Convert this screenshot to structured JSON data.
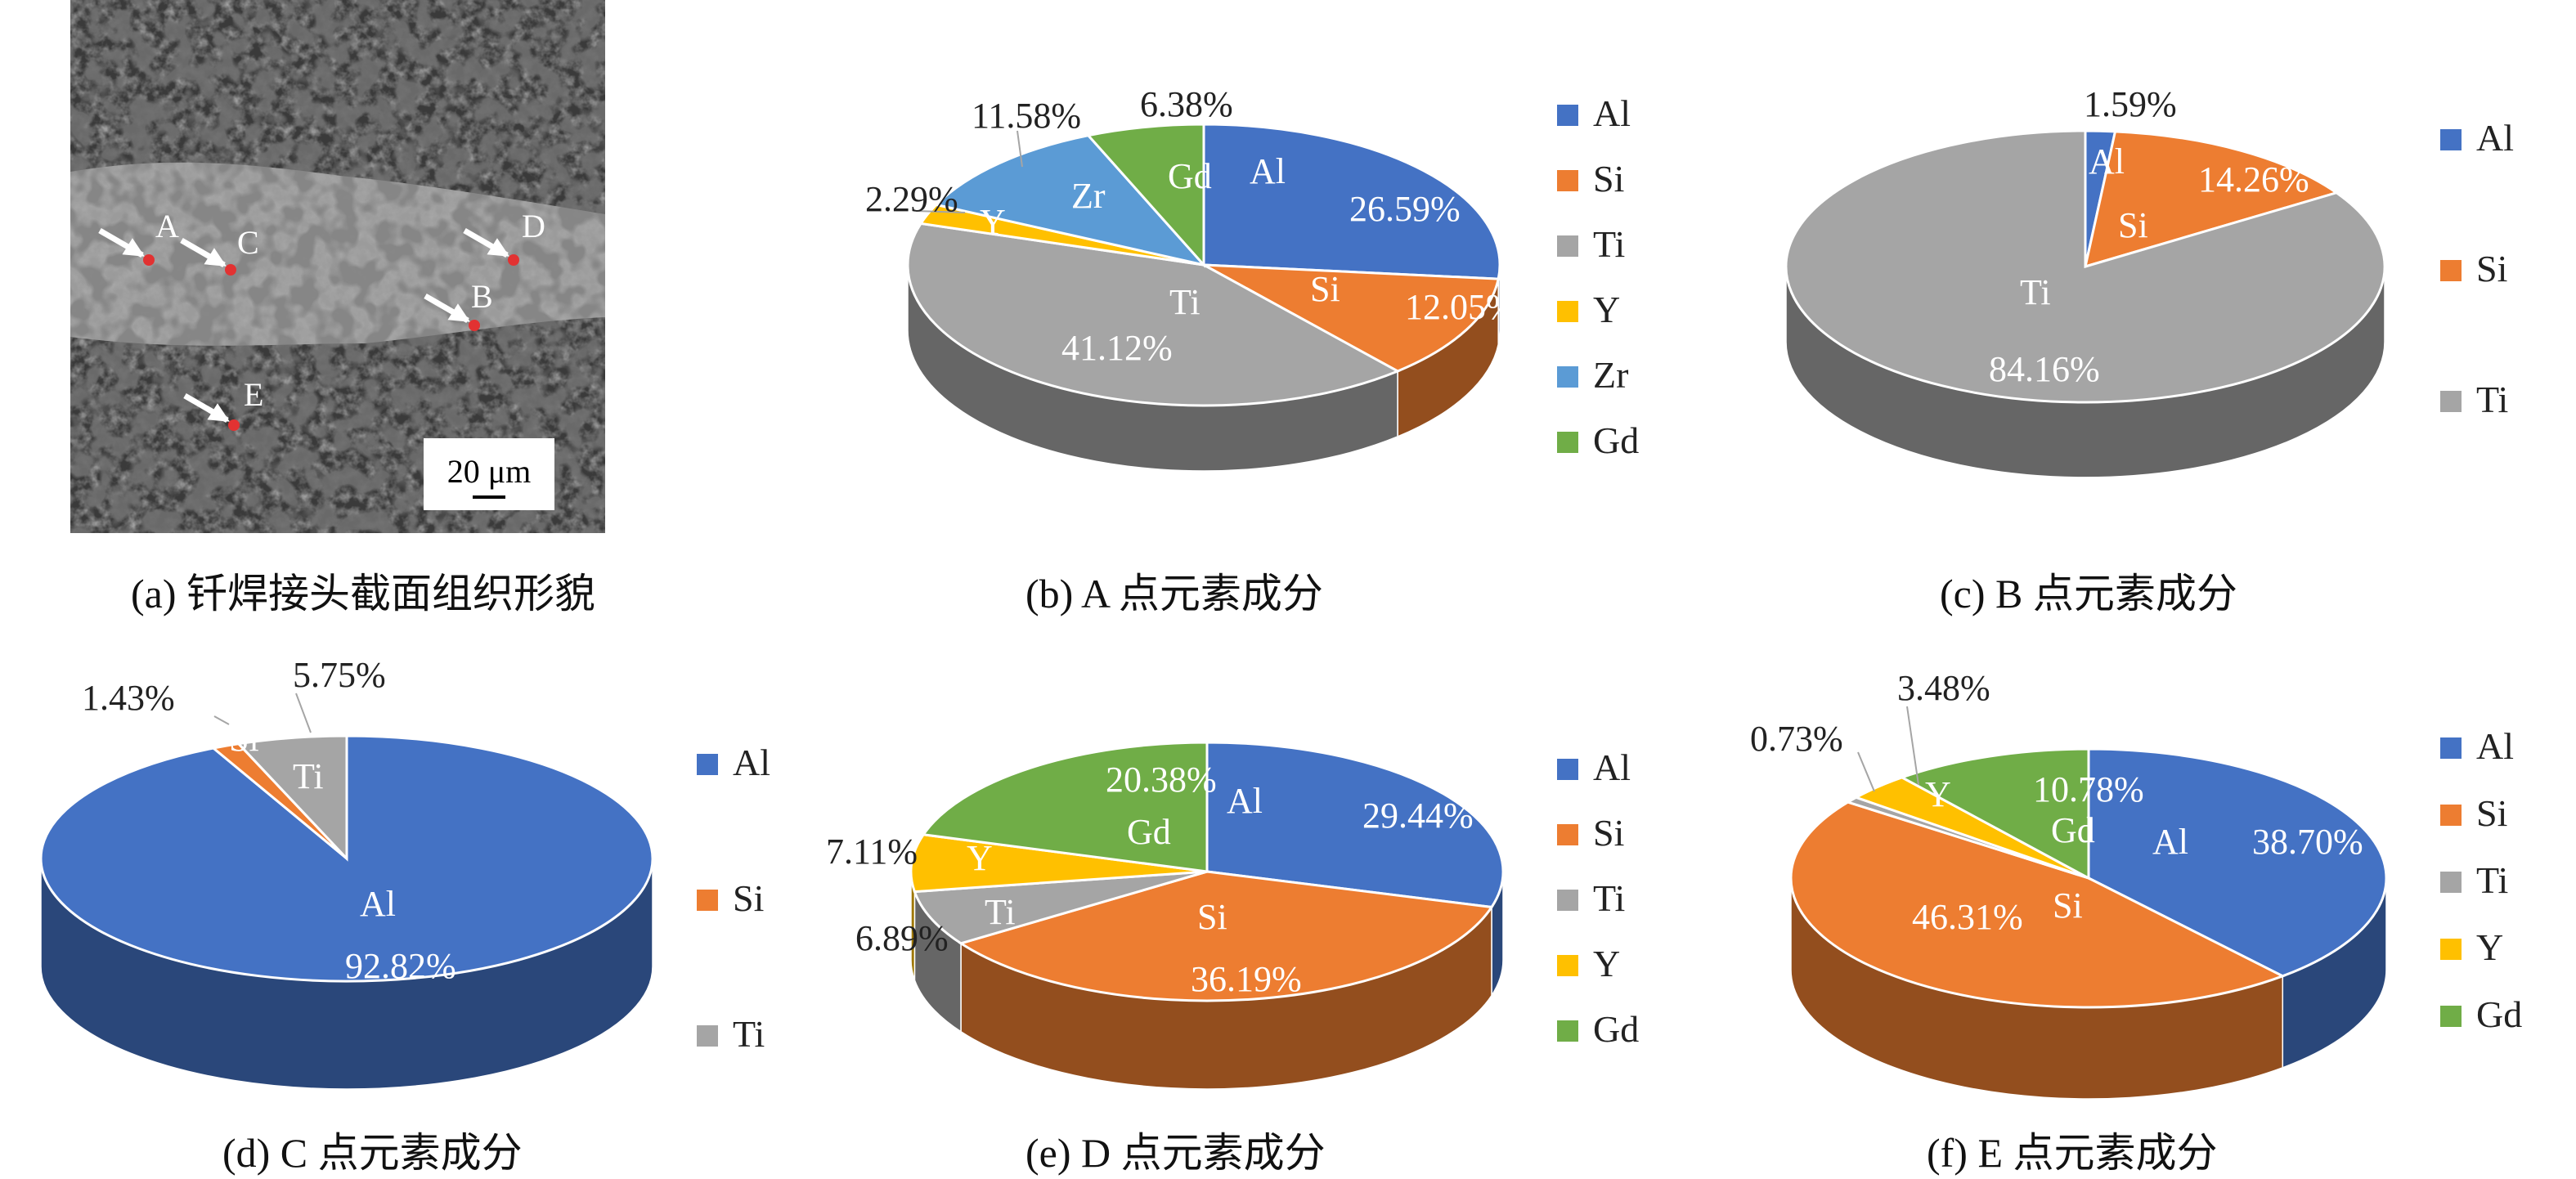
{
  "figure": {
    "captions": {
      "a": "(a) 钎焊接头截面组织形貌",
      "b": "(b) A 点元素成分",
      "c": "(c) B 点元素成分",
      "d": "(d) C 点元素成分",
      "e": "(e) D 点元素成分",
      "f": "(f) E 点元素成分"
    }
  },
  "micrograph": {
    "points": [
      "A",
      "B",
      "C",
      "D",
      "E"
    ],
    "scale_bar_label": "20 μm",
    "point_marker_color": "#e23232"
  },
  "colors": {
    "Al": "#4472c4",
    "Si": "#ed7d31",
    "Ti": "#a5a5a5",
    "Y": "#ffc000",
    "Zr": "#5b9bd5",
    "Gd": "#70ad47"
  },
  "chart_data": [
    {
      "type": "pie",
      "point": "A",
      "categories": [
        "Al",
        "Si",
        "Ti",
        "Y",
        "Zr",
        "Gd"
      ],
      "values": [
        26.59,
        12.05,
        41.12,
        2.29,
        11.58,
        6.38
      ],
      "value_labels": [
        "26.59%",
        "12.05%",
        "41.12%",
        "2.29%",
        "11.58%",
        "6.38%"
      ],
      "legend": [
        "Al",
        "Si",
        "Ti",
        "Y",
        "Zr",
        "Gd"
      ],
      "style": "3d"
    },
    {
      "type": "pie",
      "point": "B",
      "categories": [
        "Al",
        "Si",
        "Ti"
      ],
      "values": [
        1.59,
        14.26,
        84.16
      ],
      "value_labels": [
        "1.59%",
        "14.26%",
        "84.16%"
      ],
      "legend": [
        "Al",
        "Si",
        "Ti"
      ],
      "style": "3d"
    },
    {
      "type": "pie",
      "point": "C",
      "categories": [
        "Al",
        "Si",
        "Ti"
      ],
      "values": [
        92.82,
        1.43,
        5.75
      ],
      "value_labels": [
        "92.82%",
        "1.43%",
        "5.75%"
      ],
      "legend": [
        "Al",
        "Si",
        "Ti"
      ],
      "style": "3d"
    },
    {
      "type": "pie",
      "point": "D",
      "categories": [
        "Al",
        "Si",
        "Ti",
        "Y",
        "Gd"
      ],
      "values": [
        29.44,
        36.19,
        6.89,
        7.11,
        20.38
      ],
      "value_labels": [
        "29.44%",
        "36.19%",
        "6.89%",
        "7.11%",
        "20.38%"
      ],
      "legend": [
        "Al",
        "Si",
        "Ti",
        "Y",
        "Gd"
      ],
      "style": "3d"
    },
    {
      "type": "pie",
      "point": "E",
      "categories": [
        "Al",
        "Si",
        "Ti",
        "Y",
        "Gd"
      ],
      "values": [
        38.7,
        46.31,
        0.73,
        3.48,
        10.78
      ],
      "value_labels": [
        "38.70%",
        "46.31%",
        "0.73%",
        "3.48%",
        "10.78%"
      ],
      "legend": [
        "Al",
        "Si",
        "Ti",
        "Y",
        "Gd"
      ],
      "style": "3d"
    }
  ]
}
